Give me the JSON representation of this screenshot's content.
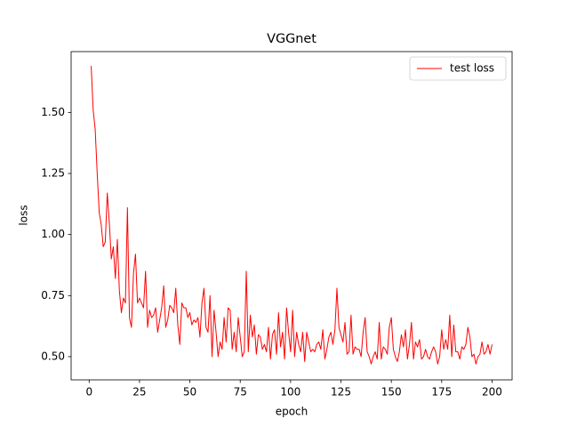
{
  "chart_data": {
    "type": "line",
    "title": "VGGnet",
    "x_label": "epoch",
    "y_label": "loss",
    "x": [
      1,
      2,
      3,
      4,
      5,
      6,
      7,
      8,
      9,
      10,
      11,
      12,
      13,
      14,
      15,
      16,
      17,
      18,
      19,
      20,
      21,
      22,
      23,
      24,
      25,
      26,
      27,
      28,
      29,
      30,
      31,
      32,
      33,
      34,
      35,
      36,
      37,
      38,
      39,
      40,
      41,
      42,
      43,
      44,
      45,
      46,
      47,
      48,
      49,
      50,
      51,
      52,
      53,
      54,
      55,
      56,
      57,
      58,
      59,
      60,
      61,
      62,
      63,
      64,
      65,
      66,
      67,
      68,
      69,
      70,
      71,
      72,
      73,
      74,
      75,
      76,
      77,
      78,
      79,
      80,
      81,
      82,
      83,
      84,
      85,
      86,
      87,
      88,
      89,
      90,
      91,
      92,
      93,
      94,
      95,
      96,
      97,
      98,
      99,
      100,
      101,
      102,
      103,
      104,
      105,
      106,
      107,
      108,
      109,
      110,
      111,
      112,
      113,
      114,
      115,
      116,
      117,
      118,
      119,
      120,
      121,
      122,
      123,
      124,
      125,
      126,
      127,
      128,
      129,
      130,
      131,
      132,
      133,
      134,
      135,
      136,
      137,
      138,
      139,
      140,
      141,
      142,
      143,
      144,
      145,
      146,
      147,
      148,
      149,
      150,
      151,
      152,
      153,
      154,
      155,
      156,
      157,
      158,
      159,
      160,
      161,
      162,
      163,
      164,
      165,
      166,
      167,
      168,
      169,
      170,
      171,
      172,
      173,
      174,
      175,
      176,
      177,
      178,
      179,
      180,
      181,
      182,
      183,
      184,
      185,
      186,
      187,
      188,
      189,
      190,
      191,
      192,
      193,
      194,
      195,
      196,
      197,
      198,
      199,
      200
    ],
    "series": [
      {
        "name": "test loss",
        "color": "#ff0000",
        "values": [
          1.69,
          1.51,
          1.43,
          1.25,
          1.09,
          1.04,
          0.95,
          0.97,
          1.17,
          1.05,
          0.9,
          0.95,
          0.82,
          0.98,
          0.77,
          0.68,
          0.74,
          0.72,
          1.11,
          0.66,
          0.62,
          0.84,
          0.92,
          0.72,
          0.74,
          0.72,
          0.7,
          0.85,
          0.62,
          0.69,
          0.66,
          0.67,
          0.7,
          0.6,
          0.65,
          0.7,
          0.79,
          0.62,
          0.65,
          0.71,
          0.7,
          0.68,
          0.78,
          0.63,
          0.55,
          0.72,
          0.7,
          0.7,
          0.66,
          0.68,
          0.63,
          0.65,
          0.64,
          0.66,
          0.58,
          0.72,
          0.78,
          0.62,
          0.6,
          0.75,
          0.5,
          0.69,
          0.6,
          0.5,
          0.56,
          0.53,
          0.66,
          0.56,
          0.7,
          0.69,
          0.53,
          0.6,
          0.52,
          0.66,
          0.58,
          0.5,
          0.52,
          0.85,
          0.52,
          0.67,
          0.58,
          0.63,
          0.51,
          0.59,
          0.58,
          0.53,
          0.55,
          0.52,
          0.62,
          0.49,
          0.59,
          0.61,
          0.51,
          0.68,
          0.54,
          0.6,
          0.49,
          0.7,
          0.6,
          0.52,
          0.69,
          0.5,
          0.6,
          0.55,
          0.52,
          0.6,
          0.48,
          0.6,
          0.56,
          0.52,
          0.53,
          0.52,
          0.55,
          0.56,
          0.53,
          0.61,
          0.49,
          0.53,
          0.58,
          0.6,
          0.55,
          0.61,
          0.78,
          0.62,
          0.59,
          0.56,
          0.64,
          0.51,
          0.52,
          0.67,
          0.51,
          0.54,
          0.53,
          0.53,
          0.5,
          0.6,
          0.66,
          0.52,
          0.5,
          0.47,
          0.5,
          0.52,
          0.49,
          0.64,
          0.49,
          0.54,
          0.53,
          0.51,
          0.62,
          0.66,
          0.53,
          0.5,
          0.48,
          0.52,
          0.59,
          0.54,
          0.61,
          0.49,
          0.55,
          0.64,
          0.49,
          0.56,
          0.54,
          0.57,
          0.49,
          0.5,
          0.53,
          0.5,
          0.49,
          0.52,
          0.54,
          0.52,
          0.47,
          0.5,
          0.61,
          0.53,
          0.57,
          0.53,
          0.67,
          0.5,
          0.63,
          0.52,
          0.52,
          0.49,
          0.54,
          0.53,
          0.55,
          0.62,
          0.58,
          0.5,
          0.51,
          0.47,
          0.5,
          0.51,
          0.56,
          0.51,
          0.52,
          0.55,
          0.51,
          0.55
        ]
      }
    ],
    "xlim": [
      -8.95,
      209.95
    ],
    "xticks": [
      0,
      25,
      50,
      75,
      100,
      125,
      150,
      175,
      200
    ],
    "ylim": [
      0.405,
      1.749
    ],
    "yticks": [
      {
        "value": 0.5,
        "label": "0.50"
      },
      {
        "value": 0.75,
        "label": "0.75"
      },
      {
        "value": 1.0,
        "label": "1.00"
      },
      {
        "value": 1.25,
        "label": "1.25"
      },
      {
        "value": 1.5,
        "label": "1.50"
      }
    ],
    "grid": false,
    "legend": "upper right"
  }
}
